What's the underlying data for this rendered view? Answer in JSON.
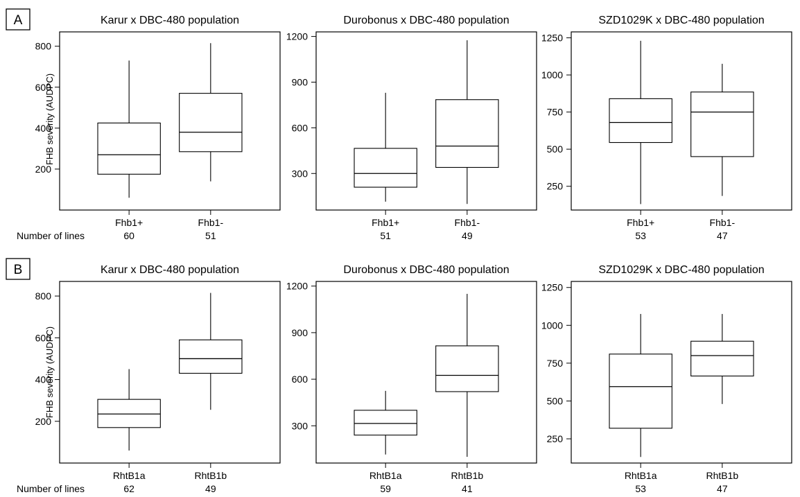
{
  "figure": {
    "panel_labels": [
      "A",
      "B"
    ],
    "ylabel": "FHB severity (AUDPC)",
    "count_label": "Number of lines"
  },
  "chart_data": [
    {
      "type": "boxplot",
      "row": "A",
      "title": "Karur x DBC-480 population",
      "ylim": [
        0,
        870
      ],
      "yticks": [
        200,
        400,
        600,
        800
      ],
      "categories": [
        "Fhb1+",
        "Fhb1-"
      ],
      "counts": [
        "60",
        "51"
      ],
      "boxes": [
        {
          "min": 60,
          "q1": 175,
          "median": 270,
          "q3": 425,
          "max": 730
        },
        {
          "min": 140,
          "q1": 285,
          "median": 380,
          "q3": 570,
          "max": 815
        }
      ]
    },
    {
      "type": "boxplot",
      "row": "A",
      "title": "Durobonus x DBC-480 population",
      "ylim": [
        60,
        1230
      ],
      "yticks": [
        300,
        600,
        900,
        1200
      ],
      "categories": [
        "Fhb1+",
        "Fhb1-"
      ],
      "counts": [
        "51",
        "49"
      ],
      "boxes": [
        {
          "min": 115,
          "q1": 210,
          "median": 300,
          "q3": 465,
          "max": 830
        },
        {
          "min": 100,
          "q1": 340,
          "median": 480,
          "q3": 785,
          "max": 1175
        }
      ]
    },
    {
      "type": "boxplot",
      "row": "A",
      "title": "SZD1029K x DBC-480 population",
      "ylim": [
        90,
        1290
      ],
      "yticks": [
        250,
        500,
        750,
        1000,
        1250
      ],
      "categories": [
        "Fhb1+",
        "Fhb1-"
      ],
      "counts": [
        "53",
        "47"
      ],
      "boxes": [
        {
          "min": 130,
          "q1": 545,
          "median": 680,
          "q3": 840,
          "max": 1230
        },
        {
          "min": 185,
          "q1": 450,
          "median": 750,
          "q3": 885,
          "max": 1075
        }
      ]
    },
    {
      "type": "boxplot",
      "row": "B",
      "title": "Karur x DBC-480 population",
      "ylim": [
        0,
        870
      ],
      "yticks": [
        200,
        400,
        600,
        800
      ],
      "categories": [
        "RhtB1a",
        "RhtB1b"
      ],
      "counts": [
        "62",
        "49"
      ],
      "boxes": [
        {
          "min": 60,
          "q1": 170,
          "median": 235,
          "q3": 305,
          "max": 450
        },
        {
          "min": 255,
          "q1": 430,
          "median": 500,
          "q3": 590,
          "max": 815
        }
      ]
    },
    {
      "type": "boxplot",
      "row": "B",
      "title": "Durobonus x DBC-480 population",
      "ylim": [
        60,
        1230
      ],
      "yticks": [
        300,
        600,
        900,
        1200
      ],
      "categories": [
        "RhtB1a",
        "RhtB1b"
      ],
      "counts": [
        "59",
        "41"
      ],
      "boxes": [
        {
          "min": 115,
          "q1": 240,
          "median": 315,
          "q3": 400,
          "max": 525
        },
        {
          "min": 100,
          "q1": 520,
          "median": 625,
          "q3": 815,
          "max": 1150
        }
      ]
    },
    {
      "type": "boxplot",
      "row": "B",
      "title": "SZD1029K x DBC-480 population",
      "ylim": [
        90,
        1290
      ],
      "yticks": [
        250,
        500,
        750,
        1000,
        1250
      ],
      "categories": [
        "RhtB1a",
        "RhtB1b"
      ],
      "counts": [
        "53",
        "47"
      ],
      "boxes": [
        {
          "min": 130,
          "q1": 320,
          "median": 595,
          "q3": 810,
          "max": 1075
        },
        {
          "min": 480,
          "q1": 665,
          "median": 800,
          "q3": 895,
          "max": 1075
        }
      ]
    }
  ]
}
